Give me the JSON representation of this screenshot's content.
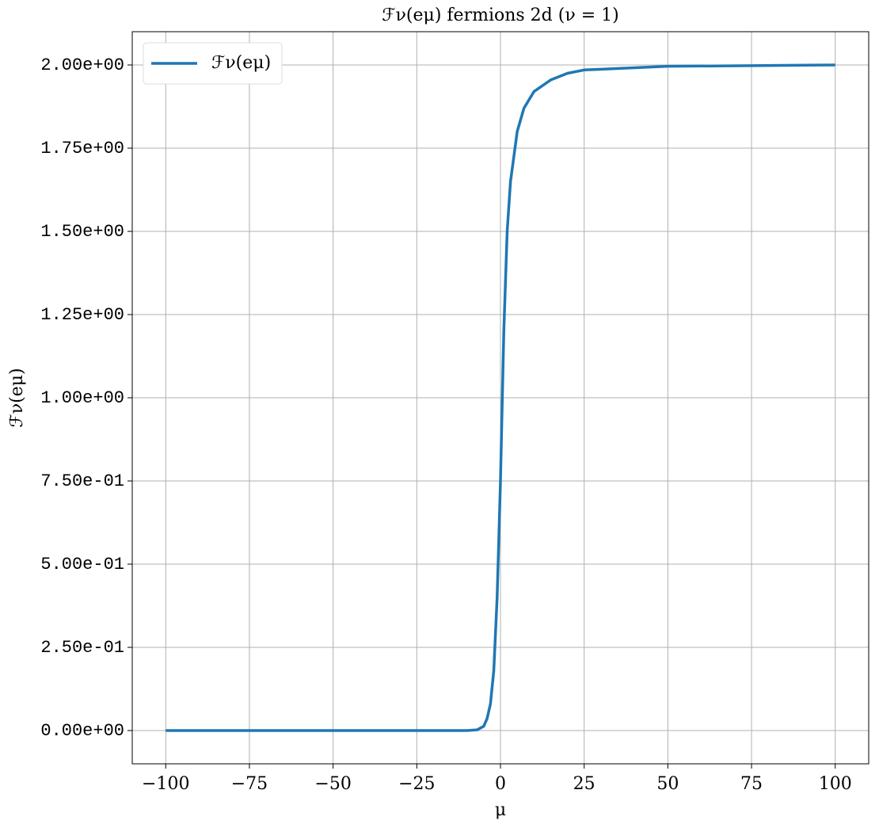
{
  "chart_data": {
    "type": "line",
    "title": "ℱν(eμ) fermions 2d (ν = 1)",
    "xlabel": "μ",
    "ylabel": "ℱν(eμ)",
    "x": [
      -100,
      -75,
      -50,
      -25,
      -10,
      -7,
      -5,
      -4,
      -3,
      -2,
      -1,
      0,
      1,
      2,
      3,
      5,
      7,
      10,
      15,
      20,
      25,
      50,
      75,
      100
    ],
    "series": [
      {
        "name": "ℱν(eμ)",
        "color": "#1f77b4",
        "values": [
          0,
          0,
          0,
          0,
          0,
          0.002,
          0.013,
          0.036,
          0.08,
          0.18,
          0.4,
          0.75,
          1.2,
          1.5,
          1.65,
          1.8,
          1.87,
          1.92,
          1.955,
          1.975,
          1.985,
          1.996,
          1.998,
          2.0
        ]
      }
    ],
    "xlim": [
      -110,
      110
    ],
    "xticks": [
      {
        "value": -100,
        "label": "−100"
      },
      {
        "value": -75,
        "label": "−75"
      },
      {
        "value": -50,
        "label": "−50"
      },
      {
        "value": -25,
        "label": "−25"
      },
      0,
      25,
      50,
      75,
      100
    ],
    "ylim": [
      -0.1,
      2.1
    ],
    "yticks": [
      {
        "value": 0,
        "label": "0.00e+00"
      },
      {
        "value": 0.25,
        "label": "2.50e-01"
      },
      {
        "value": 0.5,
        "label": "5.00e-01"
      },
      {
        "value": 0.75,
        "label": "7.50e-01"
      },
      {
        "value": 1,
        "label": "1.00e+00"
      },
      {
        "value": 1.25,
        "label": "1.25e+00"
      },
      {
        "value": 1.5,
        "label": "1.50e+00"
      },
      {
        "value": 1.75,
        "label": "1.75e+00"
      },
      {
        "value": 2,
        "label": "2.00e+00"
      }
    ],
    "grid": true,
    "legend": "upper left"
  }
}
